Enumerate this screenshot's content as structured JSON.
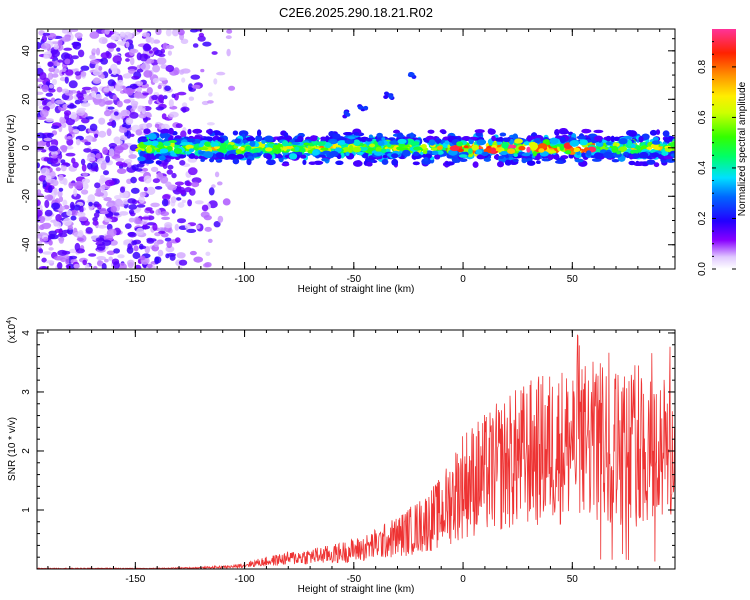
{
  "chart_data": [
    {
      "type": "heatmap",
      "title": "C2E6.2025.290.18.21.R02",
      "xlabel": "Height of straight line (km)",
      "ylabel": "Frequency (Hz)",
      "xlim": [
        -195,
        97
      ],
      "ylim": [
        -50,
        49
      ],
      "xticks": [
        -150,
        -100,
        -50,
        0,
        50
      ],
      "xtick_labels": [
        "-150",
        "-100",
        "-50",
        "0",
        "50"
      ],
      "yticks": [
        -40,
        -20,
        0,
        20,
        40
      ],
      "ytick_labels": [
        "-40",
        "-20",
        "0",
        "20",
        "40"
      ],
      "colorbar": {
        "label": "Normalized spectral amplitude",
        "range": [
          0.0,
          0.95
        ],
        "ticks": [
          0.0,
          0.2,
          0.4,
          0.6,
          0.8
        ],
        "tick_labels": [
          "0.0",
          "0.2",
          "0.4",
          "0.6",
          "0.8"
        ]
      },
      "band": {
        "center_hz": 0,
        "halfwidth_hz": 4,
        "start_km": -148,
        "noise_region_km": [
          -195,
          -112
        ],
        "streaks": [
          {
            "x": -54,
            "y": 14
          },
          {
            "x": -46,
            "y": 17
          },
          {
            "x": -34,
            "y": 21
          },
          {
            "x": -23,
            "y": 29
          }
        ]
      }
    },
    {
      "type": "line",
      "xlabel": "Height of straight line (km)",
      "ylabel": "SNR (10 * v/v)",
      "y_multiplier_label": "(x10",
      "y_multiplier_exp": "4",
      "xlim": [
        -195,
        97
      ],
      "ylim": [
        0,
        4.05
      ],
      "xticks": [
        -150,
        -100,
        -50,
        0,
        50
      ],
      "xtick_labels": [
        "-150",
        "-100",
        "-50",
        "0",
        "50"
      ],
      "yticks": [
        1,
        2,
        3,
        4
      ],
      "ytick_labels": [
        "1",
        "2",
        "3",
        "4"
      ],
      "series": [
        {
          "name": "SNR",
          "color": "#ee3333",
          "envelope_x": [
            -195,
            -140,
            -120,
            -105,
            -95,
            -80,
            -60,
            -45,
            -30,
            -20,
            -10,
            0,
            10,
            20,
            30,
            45,
            60,
            75,
            90,
            97
          ],
          "envelope_y": [
            0.01,
            0.01,
            0.02,
            0.04,
            0.1,
            0.18,
            0.25,
            0.35,
            0.55,
            0.72,
            0.95,
            1.45,
            1.6,
            1.8,
            1.95,
            2.1,
            2.15,
            2.05,
            2.0,
            2.0
          ]
        }
      ]
    }
  ]
}
